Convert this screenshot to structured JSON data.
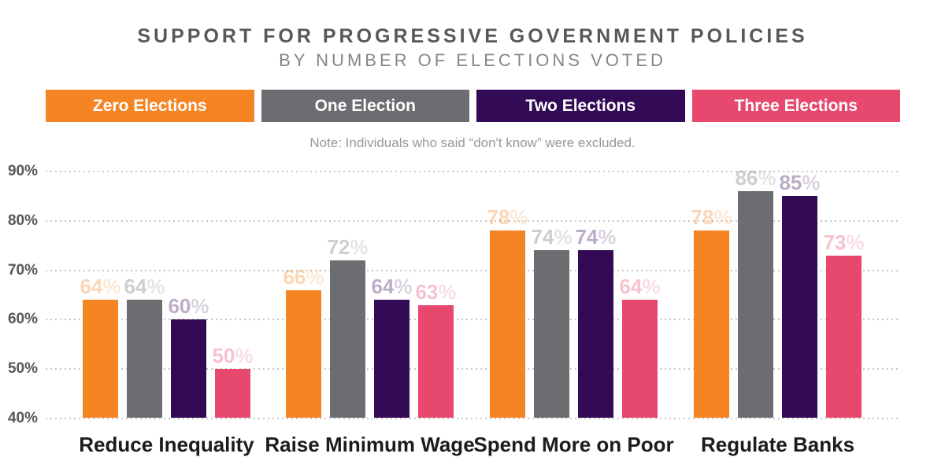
{
  "title": "SUPPORT FOR PROGRESSIVE GOVERNMENT POLICIES",
  "subtitle": "BY NUMBER OF ELECTIONS VOTED",
  "note": "Note: Individuals who said “don't know” were excluded.",
  "colors": {
    "zero_elections": "#F58423",
    "one_election": "#6C6D70",
    "two_elections": "#330A56",
    "three_elections": "#E6486E",
    "title_text": "#57585B",
    "subtitle_text": "#85868A",
    "note_text": "#97989B",
    "category_text": "#1C1C1E",
    "gridline": "#C7C7C9"
  },
  "chart_data": {
    "type": "bar",
    "title": "Support for Progressive Government Policies by Number of Elections Voted",
    "categories": [
      "Reduce Inequality",
      "Raise Minimum Wage",
      "Spend More on Poor",
      "Regulate Banks"
    ],
    "series": [
      {
        "name": "Zero Elections",
        "color": "#F58423",
        "values": [
          64,
          66,
          78,
          78
        ]
      },
      {
        "name": "One Election",
        "color": "#6C6D70",
        "values": [
          64,
          72,
          74,
          86
        ]
      },
      {
        "name": "Two Elections",
        "color": "#330A56",
        "values": [
          60,
          64,
          74,
          85
        ]
      },
      {
        "name": "Three Elections",
        "color": "#E6486E",
        "values": [
          50,
          63,
          64,
          73
        ]
      }
    ],
    "value_label_format": "percent",
    "yticks": [
      90,
      80,
      70,
      60,
      50,
      40
    ],
    "ytick_format": "percent",
    "ylim": [
      40,
      90
    ],
    "grid": "dotted-horizontal",
    "legend_position": "top",
    "xlabel": "",
    "ylabel": ""
  }
}
